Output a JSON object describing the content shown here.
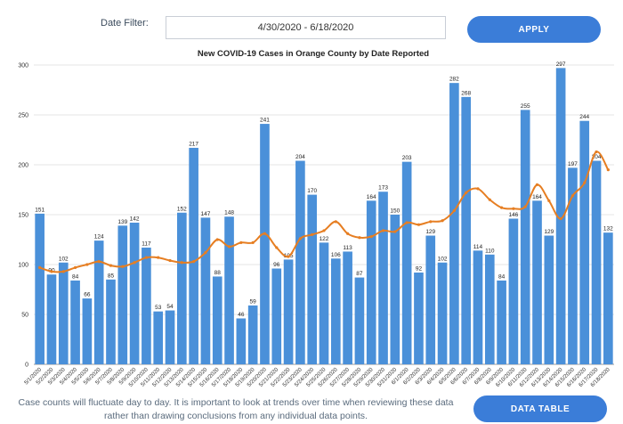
{
  "filter": {
    "label": "Date Filter:",
    "value": "4/30/2020 - 6/18/2020"
  },
  "buttons": {
    "apply": "APPLY",
    "data_table": "DATA TABLE"
  },
  "footnote": "Case counts will fluctuate day to day. It is important to look at trends over time when reviewing these data rather than drawing conclusions from any individual data points.",
  "colors": {
    "bars": "#4a90d9",
    "trend_line": "#e67e22",
    "button": "#3b7dd8"
  },
  "chart_data": {
    "type": "bar",
    "title": "New COVID-19 Cases in Orange County by Date Reported",
    "xlabel": "",
    "ylabel": "",
    "ylim": [
      0,
      300
    ],
    "yticks": [
      0,
      50,
      100,
      150,
      200,
      250,
      300
    ],
    "grid": true,
    "categories": [
      "5/1/2020",
      "5/2/2020",
      "5/3/2020",
      "5/4/2020",
      "5/5/2020",
      "5/6/2020",
      "5/7/2020",
      "5/8/2020",
      "5/9/2020",
      "5/10/2020",
      "5/11/2020",
      "5/12/2020",
      "5/13/2020",
      "5/14/2020",
      "5/15/2020",
      "5/16/2020",
      "5/17/2020",
      "5/18/2020",
      "5/19/2020",
      "5/20/2020",
      "5/21/2020",
      "5/22/2020",
      "5/23/2020",
      "5/24/2020",
      "5/25/2020",
      "5/26/2020",
      "5/27/2020",
      "5/28/2020",
      "5/29/2020",
      "5/30/2020",
      "5/31/2020",
      "6/1/2020",
      "6/2/2020",
      "6/3/2020",
      "6/4/2020",
      "6/5/2020",
      "6/6/2020",
      "6/7/2020",
      "6/8/2020",
      "6/9/2020",
      "6/10/2020",
      "6/11/2020",
      "6/12/2020",
      "6/13/2020",
      "6/14/2020",
      "6/15/2020",
      "6/16/2020",
      "6/17/2020",
      "6/18/2020"
    ],
    "series": [
      {
        "kind": "bar",
        "values": [
          151,
          90,
          102,
          84,
          66,
          124,
          85,
          139,
          142,
          117,
          53,
          54,
          152,
          217,
          147,
          88,
          148,
          46,
          59,
          241,
          96,
          105,
          204,
          170,
          122,
          106,
          113,
          87,
          164,
          173,
          150,
          203,
          92,
          129,
          102,
          282,
          268,
          114,
          110,
          84,
          146,
          255,
          164,
          129,
          297,
          197,
          244,
          204,
          132
        ]
      },
      {
        "kind": "line",
        "values": [
          97,
          93,
          93,
          97,
          100,
          103,
          99,
          98,
          102,
          107,
          107,
          104,
          102,
          103,
          112,
          125,
          118,
          122,
          122,
          131,
          117,
          108,
          126,
          130,
          134,
          143,
          131,
          127,
          128,
          134,
          133,
          142,
          140,
          143,
          144,
          154,
          172,
          176,
          165,
          157,
          156,
          158,
          180,
          164,
          146,
          169,
          182,
          213,
          195
        ]
      }
    ]
  }
}
